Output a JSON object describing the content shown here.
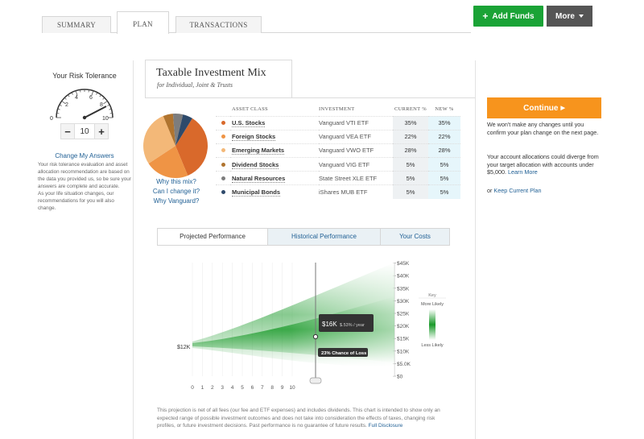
{
  "tabs": [
    {
      "label": "SUMMARY",
      "active": false
    },
    {
      "label": "PLAN",
      "active": true
    },
    {
      "label": "TRANSACTIONS",
      "active": false
    }
  ],
  "actions": {
    "add_funds": "Add Funds",
    "more": "More"
  },
  "risk": {
    "title": "Your Risk Tolerance",
    "gauge_ticks": [
      "0",
      "2",
      "4",
      "6",
      "8",
      "10"
    ],
    "value": "10",
    "minus": "−",
    "plus": "+",
    "change_link": "Change My Answers",
    "desc1": "Your risk tolerance evaluation and asset allocation recommendation are based on the data you provided us, so be sure your answers are complete and accurate.",
    "desc2": "As your life situation changes, our recommendations for you will also change."
  },
  "mix": {
    "title": "Taxable Investment Mix",
    "subtitle": "for Individual, Joint & Trusts",
    "links": [
      "Why this mix?",
      "Can I change it?",
      "Why Vanguard?"
    ],
    "headers": {
      "asset_class": "ASSET CLASS",
      "investment": "INVESTMENT",
      "current": "CURRENT %",
      "new": "NEW %"
    },
    "rows": [
      {
        "asset_class": "U.S. Stocks",
        "investment": "Vanguard VTI ETF",
        "current": "35%",
        "new": "35%",
        "color": "#d9692b"
      },
      {
        "asset_class": "Foreign Stocks",
        "investment": "Vanguard VEA ETF",
        "current": "22%",
        "new": "22%",
        "color": "#ef9445"
      },
      {
        "asset_class": "Emerging Markets",
        "investment": "Vanguard VWO ETF",
        "current": "28%",
        "new": "28%",
        "color": "#f3b878"
      },
      {
        "asset_class": "Dividend Stocks",
        "investment": "Vanguard VIG ETF",
        "current": "5%",
        "new": "5%",
        "color": "#b0742f"
      },
      {
        "asset_class": "Natural Resources",
        "investment": "State Street XLE ETF",
        "current": "5%",
        "new": "5%",
        "color": "#7d7d7d"
      },
      {
        "asset_class": "Municipal Bonds",
        "investment": "iShares MUB ETF",
        "current": "5%",
        "new": "5%",
        "color": "#2e4a6b"
      }
    ]
  },
  "perf_tabs": [
    {
      "label": "Projected Performance",
      "active": true
    },
    {
      "label": "Historical Performance",
      "active": false
    },
    {
      "label": "Your Costs",
      "active": false
    }
  ],
  "projection": {
    "start_label": "$12K",
    "y_ticks": [
      "$45K",
      "$40K",
      "$35K",
      "$30K",
      "$25K",
      "$20K",
      "$15K",
      "$10K",
      "$5.0K",
      "$0"
    ],
    "x_ticks": [
      "0",
      "1",
      "2",
      "3",
      "4",
      "5",
      "6",
      "7",
      "8",
      "9",
      "10"
    ],
    "tooltip_value": "$16K",
    "tooltip_rate": "$.53% / year",
    "loss_badge": "23% Chance of Loss",
    "slider_year": 5,
    "key_title": "Key",
    "key_more": "More Likely",
    "key_less": "Less Likely",
    "colors": {
      "band": "#1a9a2a"
    }
  },
  "disclaimer": {
    "text": "This projection is net of all fees (our fee and ETF expenses) and includes dividends. This chart is intended to show only an expected range of possible investment outcomes and does not take into consideration the effects of taxes, changing risk profiles, or future investment decisions. Past performance is no guarantee of future results.",
    "link": "Full Disclosure"
  },
  "sidebar_right": {
    "continue": "Continue",
    "note1": "We won't make any changes until you confirm your plan change on the next page.",
    "note2": "Your account allocations could diverge from your target allocation with accounts under $5,000.",
    "learn_more": "Learn More",
    "keep_prefix": "or",
    "keep_link": "Keep Current Plan"
  }
}
